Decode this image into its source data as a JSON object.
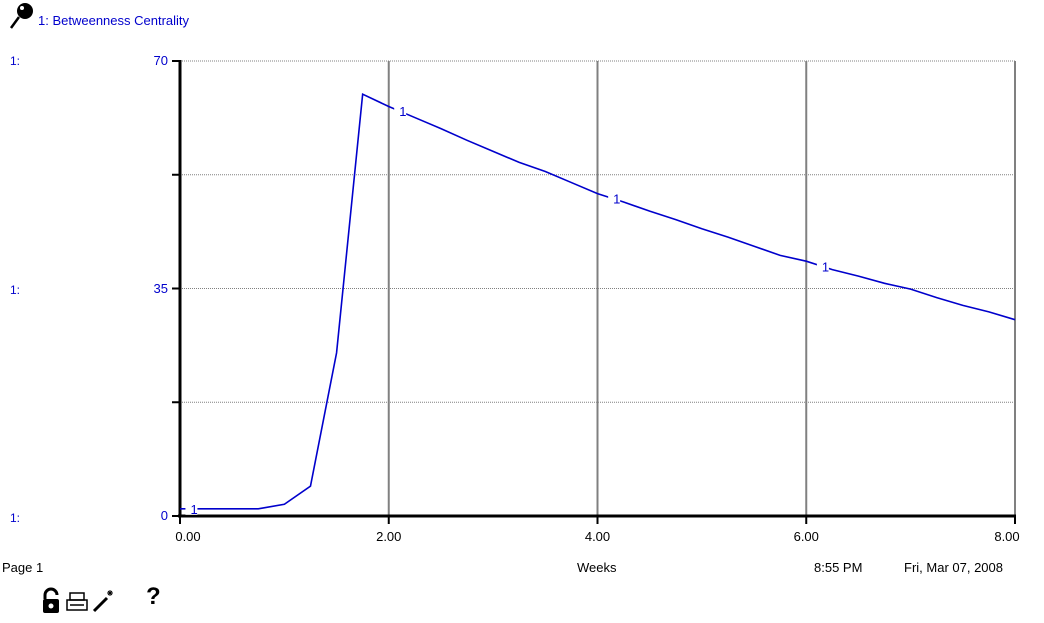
{
  "legend": {
    "title": "1: Betweenness Centrality"
  },
  "axis_prefixes": [
    "1:",
    "1:",
    "1:"
  ],
  "footer": {
    "page": "Page 1",
    "xlabel": "Weeks",
    "time": "8:55 PM",
    "date": "Fri, Mar 07, 2008"
  },
  "toolbar": {
    "icons": [
      "lock-icon",
      "print-icon",
      "magic-wand-icon",
      "help-icon"
    ],
    "help_label": "?"
  },
  "colors": {
    "series": "#0000cc",
    "grid": "#808080",
    "axis": "#000000"
  },
  "chart_data": {
    "type": "line",
    "title": "1: Betweenness Centrality",
    "xlabel": "Weeks",
    "ylabel": "",
    "xlim": [
      0,
      8
    ],
    "ylim": [
      0,
      70
    ],
    "xticks": [
      "0.00",
      "2.00",
      "4.00",
      "6.00",
      "8.00"
    ],
    "yticks": [
      "0",
      "35",
      "70"
    ],
    "grid": true,
    "series": [
      {
        "name": "1",
        "marker_label": "1",
        "x": [
          0,
          0.25,
          0.5,
          0.75,
          1.0,
          1.25,
          1.5,
          1.75,
          2.0,
          2.25,
          2.5,
          2.75,
          3.0,
          3.25,
          3.5,
          3.75,
          4.0,
          4.25,
          4.5,
          4.75,
          5.0,
          5.25,
          5.5,
          5.75,
          6.0,
          6.25,
          6.5,
          6.75,
          7.0,
          7.25,
          7.5,
          7.75,
          8.0
        ],
        "y": [
          1.1,
          1.1,
          1.1,
          1.1,
          1.8,
          4.6,
          25.1,
          64.9,
          63.0,
          61.3,
          59.6,
          57.8,
          56.1,
          54.4,
          53.0,
          51.3,
          49.6,
          48.3,
          46.9,
          45.6,
          44.2,
          42.9,
          41.5,
          40.1,
          39.2,
          37.9,
          36.9,
          35.8,
          34.9,
          33.6,
          32.4,
          31.4,
          30.2
        ]
      }
    ],
    "label_x": [
      0.1,
      2.1,
      4.15,
      6.15
    ]
  }
}
